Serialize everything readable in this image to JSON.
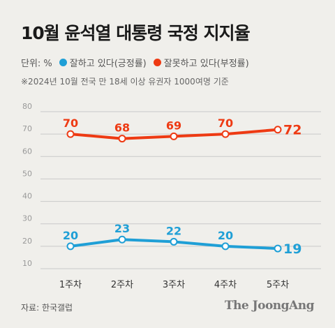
{
  "title": "10월 윤석열 대통령 국정 지지율",
  "legend": {
    "unit": "단위: %",
    "approve_label": "잘하고 있다(긍정률)",
    "disapprove_label": "잘못하고 있다(부정률)"
  },
  "note": "※2024년 10월 전국 만 18세 이상 유권자 1000여명 기준",
  "source": "자료: 한국갤럽",
  "brand": "The JoongAng",
  "colors": {
    "approve": "#1f9fd6",
    "disapprove": "#ee3a13"
  },
  "chart_data": {
    "type": "line",
    "categories": [
      "1주차",
      "2주차",
      "3주차",
      "4주차",
      "5주차"
    ],
    "series": [
      {
        "name": "잘못하고 있다(부정률)",
        "values": [
          70,
          68,
          69,
          70,
          72
        ]
      },
      {
        "name": "잘하고 있다(긍정률)",
        "values": [
          20,
          23,
          22,
          20,
          19
        ]
      }
    ],
    "yticks": [
      "80",
      "70",
      "60",
      "50",
      "40",
      "30",
      "20",
      "10"
    ],
    "ylim": [
      10,
      80
    ],
    "grid": true
  }
}
